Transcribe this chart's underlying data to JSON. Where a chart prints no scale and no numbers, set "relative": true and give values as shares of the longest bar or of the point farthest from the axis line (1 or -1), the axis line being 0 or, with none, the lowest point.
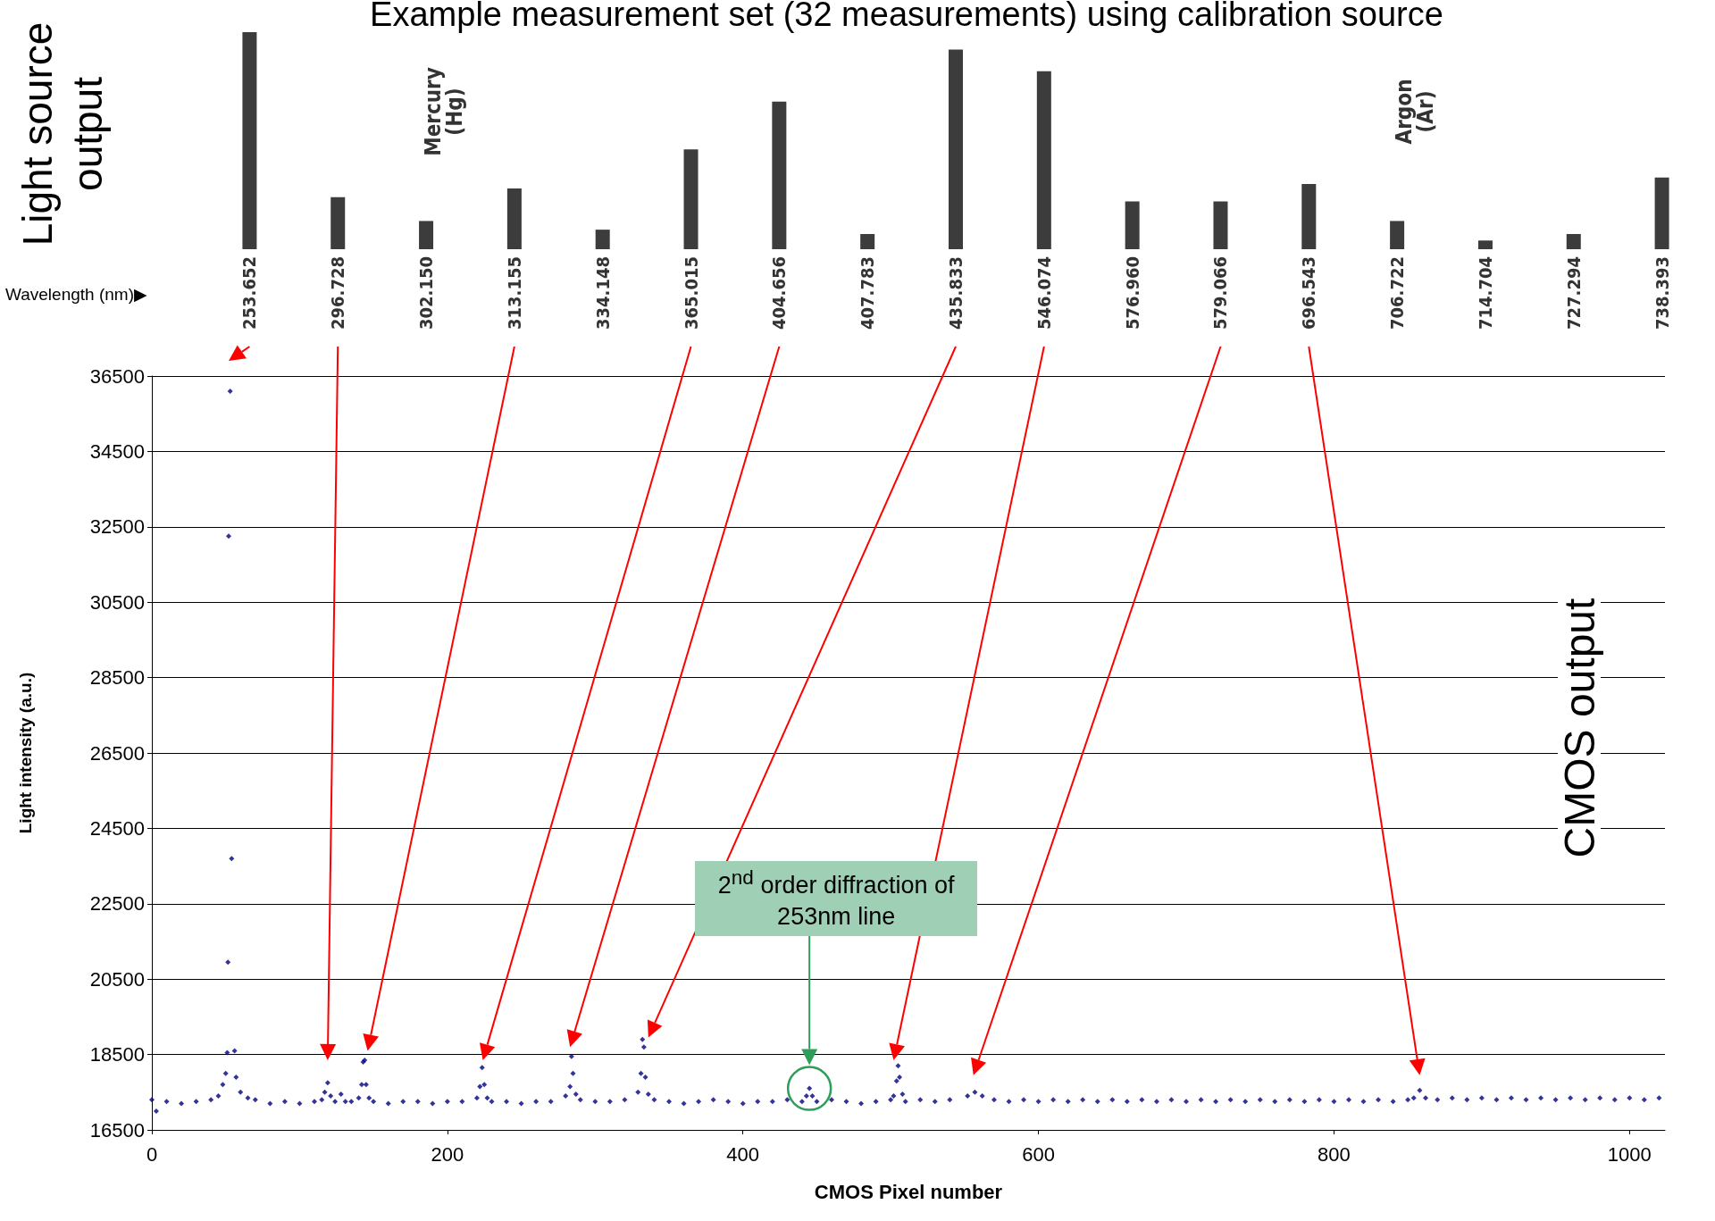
{
  "chart_data": [
    {
      "type": "bar",
      "title": "Example measurement set (32 measurements) using calibration source",
      "ylabel": "Light source output",
      "xlabel": "Wavelength (nm)▶",
      "relative": true,
      "tick_labels": "x",
      "grid": false,
      "color": "#3c3c3c",
      "categories": [
        "253.652",
        "296.728",
        "302.150",
        "313.155",
        "334.148",
        "365.015",
        "404.656",
        "407.783",
        "435.833",
        "546.074",
        "576.960",
        "579.066",
        "696.543",
        "706.722",
        "714.704",
        "727.294",
        "738.393"
      ],
      "values": [
        1.0,
        0.24,
        0.13,
        0.28,
        0.09,
        0.46,
        0.68,
        0.07,
        0.92,
        0.82,
        0.22,
        0.22,
        0.3,
        0.13,
        0.04,
        0.07,
        0.33
      ],
      "annotations": [
        "Mercury (Hg)",
        "Argon (Ar)"
      ]
    },
    {
      "type": "scatter",
      "xlabel": "CMOS Pixel number",
      "ylabel": "Light intensity (a.u.)",
      "xlim": [
        0,
        1024
      ],
      "xticks": [
        0,
        200,
        400,
        600,
        800,
        1000
      ],
      "ylim": [
        16500,
        36500
      ],
      "yticks": [
        16500,
        18500,
        20500,
        22500,
        24500,
        26500,
        28500,
        30500,
        32500,
        34500,
        36500
      ],
      "grid": "y",
      "marker": "diamond",
      "color": "#000080",
      "x": [
        0,
        3,
        10,
        20,
        30,
        40,
        45,
        48,
        50,
        51,
        51.5,
        52,
        53,
        54,
        56,
        57,
        60,
        65,
        70,
        80,
        90,
        100,
        110,
        115,
        117,
        119,
        121,
        124,
        128,
        131,
        135,
        140,
        142,
        143,
        144,
        145,
        147,
        150,
        160,
        170,
        180,
        190,
        200,
        210,
        220,
        222,
        223.5,
        225,
        227,
        230,
        240,
        250,
        260,
        270,
        280,
        283,
        284,
        285,
        287,
        290,
        300,
        310,
        320,
        329,
        331,
        332,
        333,
        334,
        336,
        340,
        350,
        360,
        370,
        380,
        390,
        400,
        410,
        420,
        430,
        440,
        443,
        445,
        447,
        450,
        460,
        470,
        480,
        490,
        500,
        502,
        504,
        505,
        506,
        508,
        510,
        520,
        530,
        540,
        552,
        557,
        562,
        570,
        580,
        590,
        600,
        610,
        620,
        630,
        640,
        650,
        660,
        670,
        680,
        690,
        700,
        710,
        720,
        730,
        740,
        750,
        760,
        770,
        780,
        790,
        800,
        810,
        820,
        830,
        840,
        850,
        854,
        858,
        862,
        870,
        880,
        890,
        900,
        910,
        920,
        930,
        940,
        950,
        960,
        970,
        980,
        990,
        1000,
        1010,
        1020
      ],
      "values": [
        17300,
        17000,
        17250,
        17200,
        17250,
        17300,
        17400,
        17700,
        18000,
        18550,
        20950,
        32250,
        36100,
        23700,
        18600,
        17900,
        17500,
        17350,
        17300,
        17200,
        17250,
        17200,
        17250,
        17300,
        17500,
        17750,
        17400,
        17250,
        17450,
        17250,
        17250,
        17350,
        17700,
        18300,
        18350,
        17700,
        17350,
        17250,
        17200,
        17250,
        17250,
        17200,
        17250,
        17250,
        17350,
        17650,
        18150,
        17700,
        17350,
        17250,
        17250,
        17200,
        17250,
        17250,
        17400,
        17650,
        18450,
        18000,
        17450,
        17300,
        17250,
        17250,
        17300,
        17500,
        18000,
        18900,
        18700,
        17900,
        17450,
        17300,
        17250,
        17200,
        17250,
        17300,
        17250,
        17200,
        17250,
        17250,
        17300,
        17250,
        17400,
        17600,
        17400,
        17250,
        17300,
        17250,
        17200,
        17250,
        17300,
        17400,
        17800,
        18200,
        17900,
        17450,
        17250,
        17300,
        17250,
        17300,
        17400,
        17500,
        17400,
        17300,
        17250,
        17300,
        17250,
        17300,
        17250,
        17300,
        17250,
        17300,
        17250,
        17300,
        17250,
        17300,
        17250,
        17300,
        17250,
        17300,
        17250,
        17300,
        17250,
        17300,
        17250,
        17300,
        17250,
        17300,
        17250,
        17300,
        17250,
        17300,
        17350,
        17550,
        17350,
        17300,
        17350,
        17300,
        17350,
        17300,
        17350,
        17300,
        17350,
        17300,
        17350,
        17300,
        17350,
        17300,
        17350,
        17300,
        17350
      ],
      "annotations": [
        "2$^{nd}$ order diffraction of 253nm line",
        "CMOS output"
      ]
    }
  ]
}
